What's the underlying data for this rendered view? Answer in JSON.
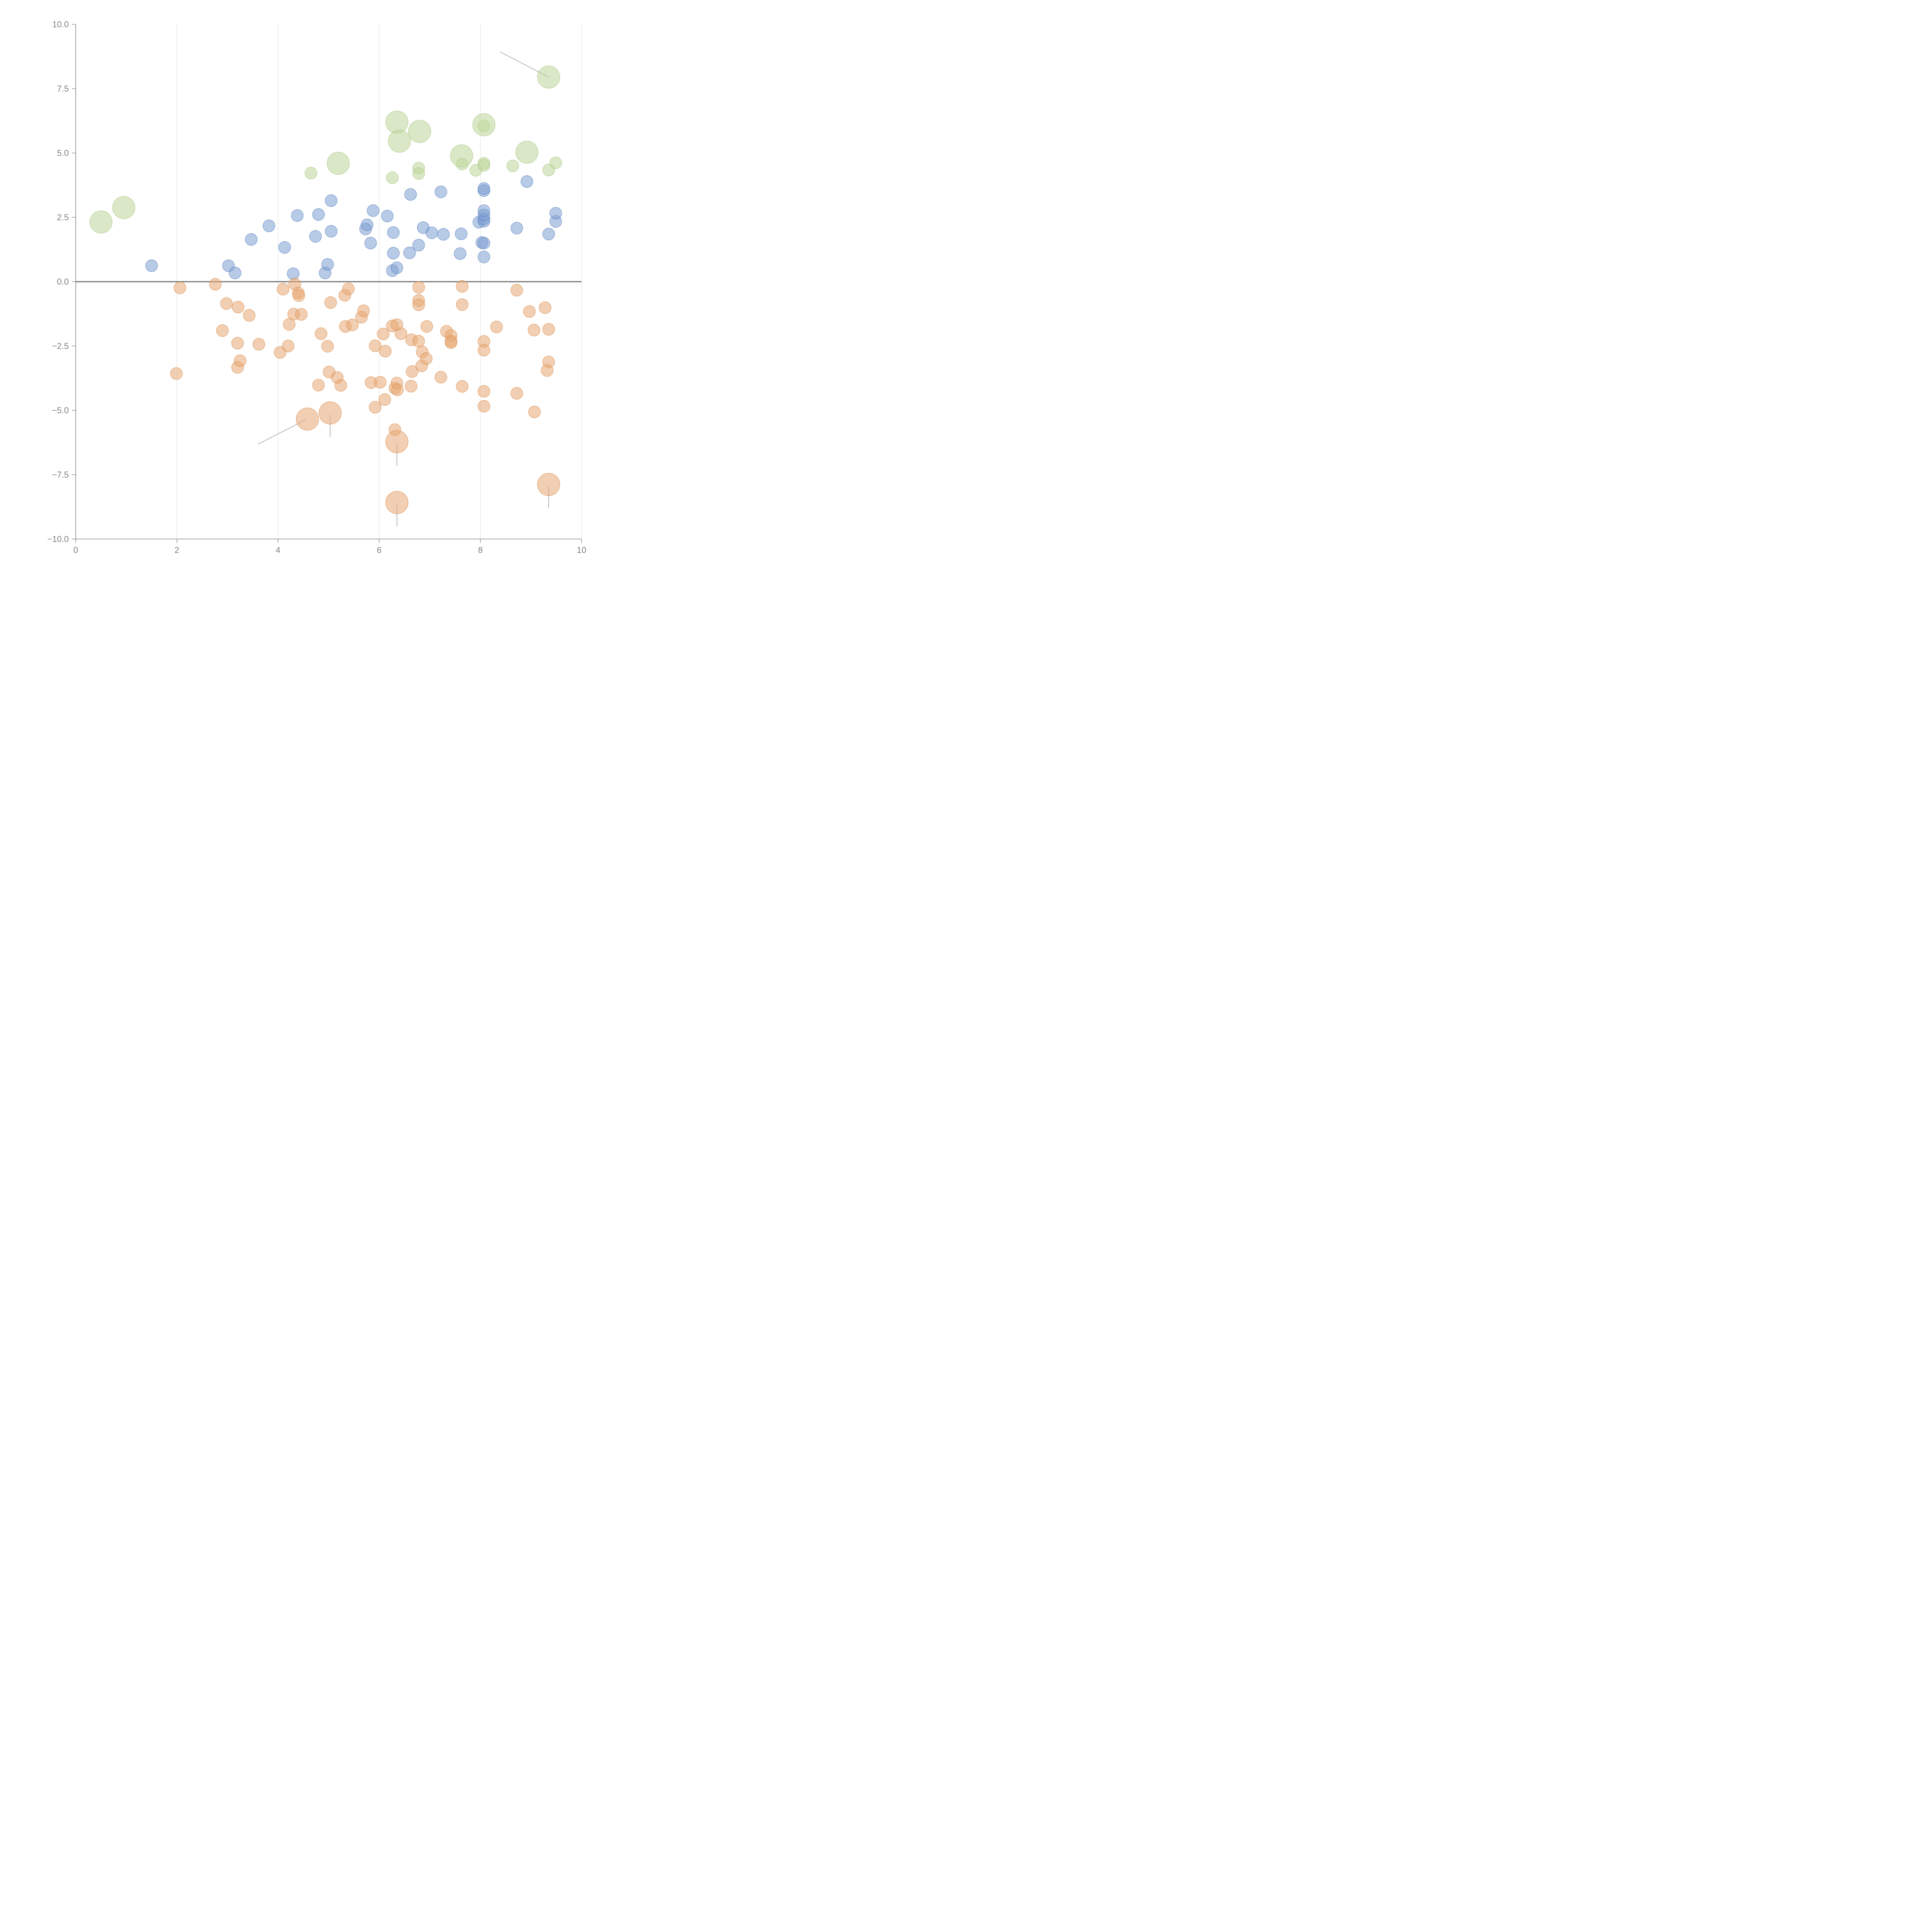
{
  "chart_data": {
    "type": "scatter",
    "title": "",
    "xlabel": "",
    "ylabel": "",
    "xlim": [
      0,
      10
    ],
    "ylim": [
      -10,
      10
    ],
    "x_ticks": [
      {
        "value": 0,
        "label": "0"
      },
      {
        "value": 2,
        "label": "2"
      },
      {
        "value": 4,
        "label": "4"
      },
      {
        "value": 6,
        "label": "6"
      },
      {
        "value": 8,
        "label": "8"
      },
      {
        "value": 10,
        "label": "10"
      }
    ],
    "y_ticks": [
      {
        "value": 10,
        "label": "10.0"
      },
      {
        "value": 7.5,
        "label": "7.5"
      },
      {
        "value": 5,
        "label": "5.0"
      },
      {
        "value": 2.5,
        "label": "2.5"
      },
      {
        "value": 0,
        "label": "0.0"
      },
      {
        "value": -2.5,
        "label": "−2.5"
      },
      {
        "value": -5,
        "label": "−5.0"
      },
      {
        "value": -7.5,
        "label": "−7.5"
      },
      {
        "value": -10,
        "label": "−10.0"
      }
    ],
    "x_grid": true,
    "legend": "none",
    "series": [
      {
        "name": "blue",
        "color": "#7b9fd1",
        "stroke": "#5b82bf",
        "size": 1,
        "points": [
          [
            1.5,
            0.62
          ],
          [
            3.02,
            0.62
          ],
          [
            3.15,
            0.34
          ],
          [
            3.47,
            1.64
          ],
          [
            3.82,
            2.17
          ],
          [
            4.13,
            1.33
          ],
          [
            4.3,
            0.31
          ],
          [
            4.38,
            2.57
          ],
          [
            4.74,
            1.76
          ],
          [
            4.8,
            2.61
          ],
          [
            4.93,
            0.34
          ],
          [
            4.98,
            0.67
          ],
          [
            5.05,
            1.96
          ],
          [
            5.05,
            3.15
          ],
          [
            5.73,
            2.05
          ],
          [
            5.76,
            2.21
          ],
          [
            5.83,
            1.5
          ],
          [
            5.88,
            2.76
          ],
          [
            6.16,
            2.55
          ],
          [
            6.26,
            0.43
          ],
          [
            6.28,
            1.11
          ],
          [
            6.28,
            1.91
          ],
          [
            6.35,
            0.54
          ],
          [
            6.6,
            1.12
          ],
          [
            6.62,
            3.39
          ],
          [
            6.78,
            1.42
          ],
          [
            6.87,
            2.1
          ],
          [
            7.04,
            1.9
          ],
          [
            7.22,
            3.49
          ],
          [
            7.27,
            1.84
          ],
          [
            7.6,
            1.09
          ],
          [
            7.62,
            1.86
          ],
          [
            7.97,
            2.31
          ],
          [
            8.03,
            1.52
          ],
          [
            8.07,
            1.5
          ],
          [
            8.07,
            0.96
          ],
          [
            8.07,
            2.35
          ],
          [
            8.07,
            2.44
          ],
          [
            8.07,
            2.59
          ],
          [
            8.07,
            2.76
          ],
          [
            8.07,
            3.54
          ],
          [
            8.07,
            3.62
          ],
          [
            8.72,
            2.08
          ],
          [
            8.92,
            3.89
          ],
          [
            9.35,
            1.85
          ],
          [
            9.49,
            2.34
          ],
          [
            9.49,
            2.66
          ]
        ]
      },
      {
        "name": "orange",
        "color": "#e8a873",
        "stroke": "#d98e50",
        "size": 1,
        "points": [
          [
            1.99,
            -3.57
          ],
          [
            2.06,
            -0.24
          ],
          [
            2.76,
            -0.1
          ],
          [
            2.9,
            -1.9
          ],
          [
            2.98,
            -0.85
          ],
          [
            3.2,
            -2.39
          ],
          [
            3.2,
            -3.33
          ],
          [
            3.21,
            -0.99
          ],
          [
            3.25,
            -3.07
          ],
          [
            3.43,
            -1.31
          ],
          [
            3.62,
            -2.43
          ],
          [
            4.04,
            -2.75
          ],
          [
            4.1,
            -0.29
          ],
          [
            4.2,
            -2.5
          ],
          [
            4.22,
            -1.66
          ],
          [
            4.31,
            -1.26
          ],
          [
            4.33,
            -0.09
          ],
          [
            4.4,
            -0.44
          ],
          [
            4.41,
            -0.54
          ],
          [
            4.46,
            -1.27
          ],
          [
            4.8,
            -4.02
          ],
          [
            4.85,
            -2.02
          ],
          [
            4.98,
            -2.51
          ],
          [
            5.01,
            -3.51
          ],
          [
            5.04,
            -0.81
          ],
          [
            5.17,
            -3.72
          ],
          [
            5.24,
            -4.03
          ],
          [
            5.32,
            -0.53
          ],
          [
            5.33,
            -1.74
          ],
          [
            5.39,
            -0.28
          ],
          [
            5.47,
            -1.68
          ],
          [
            5.65,
            -1.38
          ],
          [
            5.69,
            -1.13
          ],
          [
            5.84,
            -3.92
          ],
          [
            5.92,
            -4.88
          ],
          [
            5.92,
            -2.49
          ],
          [
            6.02,
            -3.91
          ],
          [
            6.08,
            -2.03
          ],
          [
            6.11,
            -4.58
          ],
          [
            6.12,
            -2.7
          ],
          [
            6.26,
            -1.72
          ],
          [
            6.31,
            -4.14
          ],
          [
            6.31,
            -5.75
          ],
          [
            6.35,
            -1.67
          ],
          [
            6.35,
            -3.94
          ],
          [
            6.36,
            -4.2
          ],
          [
            6.43,
            -2.02
          ],
          [
            6.63,
            -4.06
          ],
          [
            6.64,
            -2.26
          ],
          [
            6.65,
            -3.49
          ],
          [
            6.78,
            -0.22
          ],
          [
            6.78,
            -0.73
          ],
          [
            6.78,
            -0.9
          ],
          [
            6.78,
            -2.31
          ],
          [
            6.85,
            -2.73
          ],
          [
            6.84,
            -3.27
          ],
          [
            6.93,
            -2.99
          ],
          [
            6.94,
            -1.74
          ],
          [
            7.22,
            -3.71
          ],
          [
            7.33,
            -1.93
          ],
          [
            7.42,
            -2.09
          ],
          [
            7.42,
            -2.31
          ],
          [
            7.42,
            -2.37
          ],
          [
            7.64,
            -0.18
          ],
          [
            7.64,
            -0.89
          ],
          [
            7.64,
            -4.07
          ],
          [
            8.07,
            -2.32
          ],
          [
            8.07,
            -2.66
          ],
          [
            8.07,
            -4.26
          ],
          [
            8.07,
            -4.84
          ],
          [
            8.32,
            -1.76
          ],
          [
            8.72,
            -0.33
          ],
          [
            8.72,
            -4.34
          ],
          [
            8.97,
            -1.16
          ],
          [
            9.06,
            -1.88
          ],
          [
            9.07,
            -5.06
          ],
          [
            9.28,
            -1.01
          ],
          [
            9.35,
            -1.85
          ],
          [
            9.35,
            -3.12
          ],
          [
            9.32,
            -3.45
          ]
        ]
      },
      {
        "name": "green",
        "color": "#bdd599",
        "stroke": "#a9c780",
        "size": 1,
        "points": [
          [
            4.65,
            4.22
          ],
          [
            6.26,
            4.04
          ],
          [
            6.78,
            4.41
          ],
          [
            6.78,
            4.2
          ],
          [
            7.64,
            4.57
          ],
          [
            7.91,
            4.33
          ],
          [
            8.07,
            4.6
          ],
          [
            8.07,
            4.52
          ],
          [
            8.07,
            6.05
          ],
          [
            8.64,
            4.5
          ],
          [
            9.35,
            4.34
          ],
          [
            9.49,
            4.62
          ]
        ]
      },
      {
        "name": "green-large",
        "color": "#bdd599",
        "stroke": "#a9c780",
        "size": 2,
        "points": [
          [
            0.5,
            2.32
          ],
          [
            0.95,
            2.88
          ],
          [
            5.19,
            4.6
          ],
          [
            6.35,
            6.2
          ],
          [
            6.4,
            5.46
          ],
          [
            6.8,
            5.84
          ],
          [
            7.63,
            4.89
          ],
          [
            8.07,
            6.1
          ],
          [
            8.92,
            5.03
          ],
          [
            9.35,
            7.95
          ]
        ]
      },
      {
        "name": "orange-large",
        "color": "#e8a873",
        "stroke": "#d98e50",
        "size": 2,
        "points": [
          [
            4.58,
            -5.34
          ],
          [
            5.03,
            -5.1
          ],
          [
            6.35,
            -6.22
          ],
          [
            6.35,
            -8.58
          ],
          [
            9.35,
            -7.88
          ]
        ]
      }
    ],
    "annotations": [
      {
        "point": [
          9.35,
          7.95
        ],
        "text": ""
      },
      {
        "point": [
          4.58,
          -5.34
        ],
        "text": ""
      },
      {
        "point": [
          5.03,
          -5.1
        ],
        "text": ""
      },
      {
        "point": [
          6.35,
          -6.22
        ],
        "text": ""
      },
      {
        "point": [
          6.35,
          -8.58
        ],
        "text": ""
      },
      {
        "point": [
          9.35,
          -7.88
        ],
        "text": ""
      }
    ]
  }
}
